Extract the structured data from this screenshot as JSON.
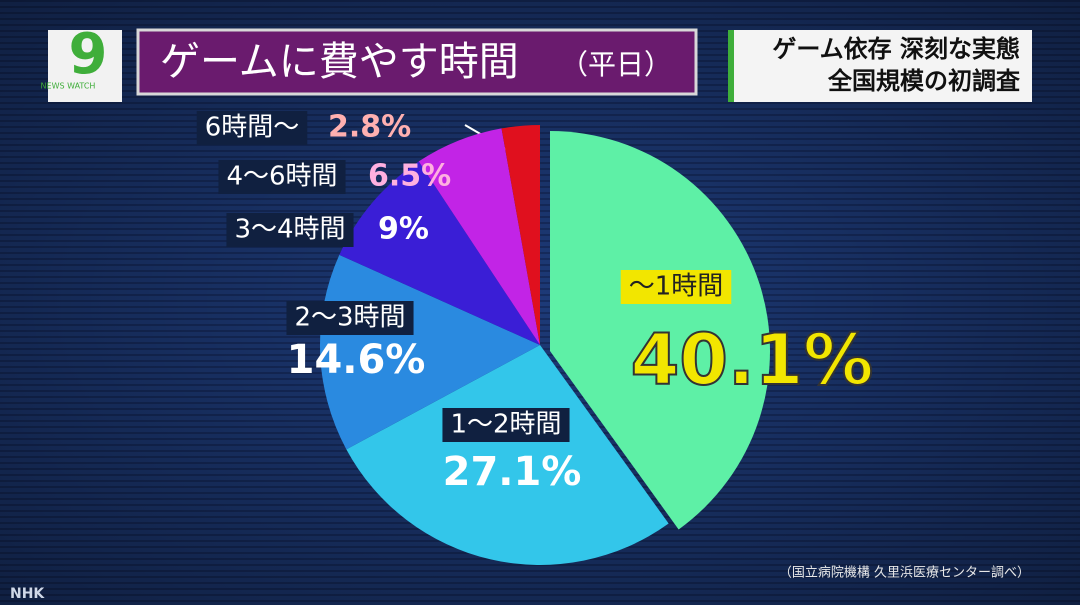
{
  "header": {
    "logo_number": "9",
    "logo_text": "NEWS WATCH",
    "headline_lines": [
      "ゲーム依存 深刻な実態",
      "全国規模の初調査"
    ]
  },
  "chart_data": {
    "type": "pie",
    "title": "ゲームに費やす時間",
    "subtitle": "（平日）",
    "categories": [
      "〜1時間",
      "1〜2時間",
      "2〜3時間",
      "3〜4時間",
      "4〜6時間",
      "6時間〜"
    ],
    "values": [
      40.1,
      27.1,
      14.6,
      9,
      6.5,
      2.8
    ],
    "value_labels": [
      "40.1%",
      "27.1%",
      "14.6%",
      "9%",
      "6.5%",
      "2.8%"
    ],
    "colors": [
      "#5ef0a6",
      "#33c6ea",
      "#2a8ae0",
      "#3a1ed6",
      "#c224e6",
      "#e0101e"
    ]
  },
  "footer": {
    "source": "（国立病院機構 久里浜医療センター調べ）",
    "broadcaster": "NHK"
  }
}
